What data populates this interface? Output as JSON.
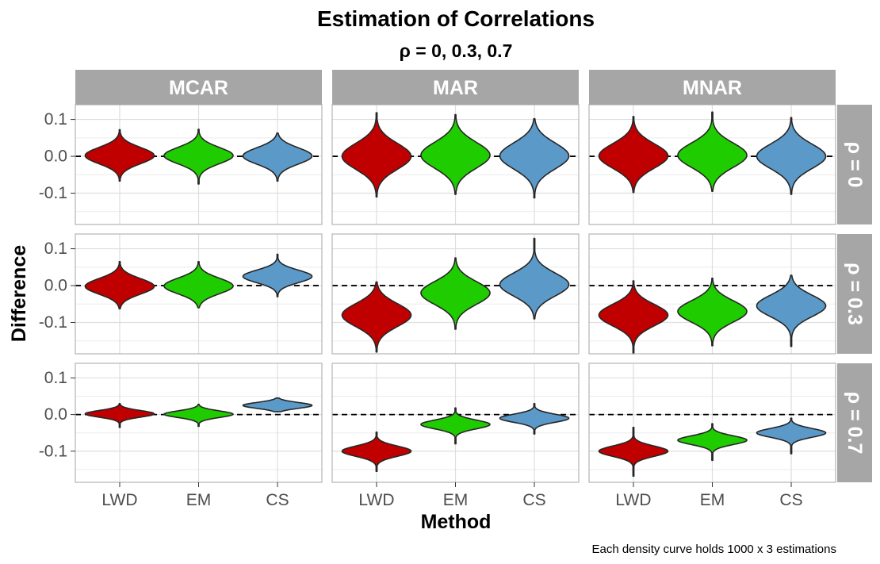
{
  "chart_data": {
    "type": "violin",
    "title": "Estimation of Correlations",
    "subtitle": "ρ = 0, 0.3, 0.7",
    "xlabel": "Method",
    "ylabel": "Difference",
    "caption": "Each density curve holds 1000 x 3 estimations",
    "categories": [
      "LWD",
      "EM",
      "CS"
    ],
    "columns": [
      "MCAR",
      "MAR",
      "MNAR"
    ],
    "rows": [
      "ρ = 0",
      "ρ = 0.3",
      "ρ = 0.7"
    ],
    "y_ticks": [
      0.1,
      0.0,
      -0.1
    ],
    "y_tick_labels": [
      "0.1",
      "0.0",
      "-0.1"
    ],
    "ylim": [
      -0.185,
      0.14
    ],
    "reference_line": 0,
    "colors": {
      "LWD": "#c00000",
      "EM": "#1fcc00",
      "CS": "#5b99c8"
    },
    "panels": [
      {
        "row": 0,
        "col": 0,
        "violins": [
          {
            "method": "LWD",
            "center": 0.002,
            "sd": 0.022,
            "min": -0.067,
            "max": 0.072
          },
          {
            "method": "EM",
            "center": 0.002,
            "sd": 0.022,
            "min": -0.075,
            "max": 0.073
          },
          {
            "method": "CS",
            "center": 0.001,
            "sd": 0.022,
            "min": -0.067,
            "max": 0.063
          }
        ]
      },
      {
        "row": 0,
        "col": 1,
        "violins": [
          {
            "method": "LWD",
            "center": 0.0,
            "sd": 0.035,
            "min": -0.11,
            "max": 0.118
          },
          {
            "method": "EM",
            "center": 0.003,
            "sd": 0.035,
            "min": -0.103,
            "max": 0.113
          },
          {
            "method": "CS",
            "center": 0.001,
            "sd": 0.035,
            "min": -0.113,
            "max": 0.102
          }
        ]
      },
      {
        "row": 0,
        "col": 2,
        "violins": [
          {
            "method": "LWD",
            "center": 0.001,
            "sd": 0.033,
            "min": -0.098,
            "max": 0.108
          },
          {
            "method": "EM",
            "center": 0.003,
            "sd": 0.033,
            "min": -0.095,
            "max": 0.12
          },
          {
            "method": "CS",
            "center": 0.0,
            "sd": 0.033,
            "min": -0.103,
            "max": 0.105
          }
        ]
      },
      {
        "row": 1,
        "col": 0,
        "violins": [
          {
            "method": "LWD",
            "center": -0.002,
            "sd": 0.021,
            "min": -0.063,
            "max": 0.065
          },
          {
            "method": "EM",
            "center": -0.001,
            "sd": 0.021,
            "min": -0.06,
            "max": 0.065
          },
          {
            "method": "CS",
            "center": 0.025,
            "sd": 0.017,
            "min": -0.03,
            "max": 0.085
          }
        ]
      },
      {
        "row": 1,
        "col": 1,
        "violins": [
          {
            "method": "LWD",
            "center": -0.08,
            "sd": 0.031,
            "min": -0.18,
            "max": 0.01
          },
          {
            "method": "EM",
            "center": -0.02,
            "sd": 0.031,
            "min": -0.118,
            "max": 0.075
          },
          {
            "method": "CS",
            "center": 0.003,
            "sd": 0.031,
            "min": -0.09,
            "max": 0.128
          }
        ]
      },
      {
        "row": 1,
        "col": 2,
        "violins": [
          {
            "method": "LWD",
            "center": -0.08,
            "sd": 0.029,
            "min": -0.185,
            "max": 0.013
          },
          {
            "method": "EM",
            "center": -0.07,
            "sd": 0.029,
            "min": -0.163,
            "max": 0.02
          },
          {
            "method": "CS",
            "center": -0.055,
            "sd": 0.029,
            "min": -0.165,
            "max": 0.028
          }
        ]
      },
      {
        "row": 2,
        "col": 0,
        "violins": [
          {
            "method": "LWD",
            "center": 0.002,
            "sd": 0.009,
            "min": -0.035,
            "max": 0.03
          },
          {
            "method": "EM",
            "center": 0.001,
            "sd": 0.009,
            "min": -0.032,
            "max": 0.028
          },
          {
            "method": "CS",
            "center": 0.025,
            "sd": 0.008,
            "min": 0.008,
            "max": 0.045
          }
        ]
      },
      {
        "row": 2,
        "col": 1,
        "violins": [
          {
            "method": "LWD",
            "center": -0.1,
            "sd": 0.014,
            "min": -0.155,
            "max": -0.048
          },
          {
            "method": "EM",
            "center": -0.027,
            "sd": 0.012,
            "min": -0.08,
            "max": 0.018
          },
          {
            "method": "CS",
            "center": -0.01,
            "sd": 0.011,
            "min": -0.053,
            "max": 0.03
          }
        ]
      },
      {
        "row": 2,
        "col": 2,
        "violins": [
          {
            "method": "LWD",
            "center": -0.1,
            "sd": 0.014,
            "min": -0.168,
            "max": -0.035
          },
          {
            "method": "EM",
            "center": -0.07,
            "sd": 0.012,
            "min": -0.125,
            "max": -0.025
          },
          {
            "method": "CS",
            "center": -0.05,
            "sd": 0.012,
            "min": -0.107,
            "max": -0.01
          }
        ]
      }
    ]
  }
}
